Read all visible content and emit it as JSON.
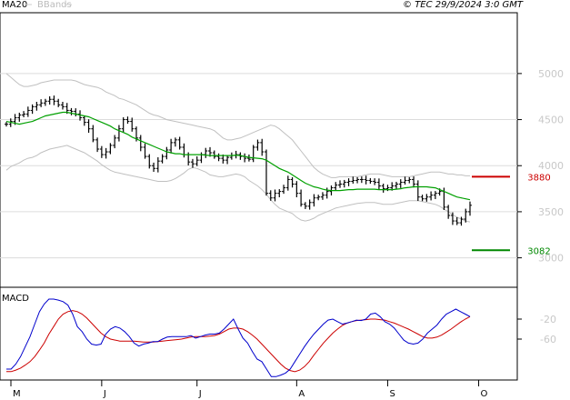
{
  "header": {
    "ma_label": "MA20",
    "bbands_label": "BBands",
    "copyright": "© TEC 29/9/2024 3:0 GMT"
  },
  "colors": {
    "ma": "#00a000",
    "bbands": "#c0c0c0",
    "price": "#000000",
    "resistance": "#cc0000",
    "support": "#008800",
    "macd": "#0000cc",
    "signal": "#cc0000",
    "grid": "#dcdcdc"
  },
  "chart_data": [
    {
      "type": "line",
      "title": "",
      "ylim": [
        2700,
        5650
      ],
      "yticks": [
        "5000",
        "4500",
        "4000",
        "3500",
        "3000"
      ],
      "ytick_values": [
        5000,
        4500,
        4000,
        3500,
        3000
      ],
      "xtick_labels": [
        "M",
        "J",
        "J",
        "A",
        "S",
        "O"
      ],
      "xtick_index": [
        0,
        22,
        44,
        67,
        88,
        109
      ],
      "levels": [
        {
          "name": "resistance",
          "value": 3880,
          "label": "3880"
        },
        {
          "name": "support",
          "value": 3082,
          "label": "3082"
        }
      ],
      "series": [
        {
          "name": "Close",
          "values": [
            4450,
            4480,
            4520,
            4550,
            4560,
            4600,
            4640,
            4660,
            4680,
            4700,
            4720,
            4700,
            4660,
            4640,
            4600,
            4590,
            4560,
            4520,
            4470,
            4400,
            4280,
            4180,
            4120,
            4150,
            4220,
            4300,
            4400,
            4500,
            4480,
            4400,
            4300,
            4200,
            4100,
            4000,
            3970,
            4050,
            4100,
            4170,
            4250,
            4280,
            4200,
            4120,
            4040,
            4020,
            4060,
            4120,
            4160,
            4140,
            4100,
            4080,
            4060,
            4090,
            4110,
            4120,
            4100,
            4080,
            4070,
            4200,
            4250,
            4150,
            3700,
            3650,
            3700,
            3720,
            3760,
            3850,
            3800,
            3700,
            3580,
            3560,
            3600,
            3650,
            3660,
            3680,
            3720,
            3760,
            3790,
            3800,
            3820,
            3830,
            3840,
            3850,
            3850,
            3840,
            3830,
            3820,
            3780,
            3750,
            3760,
            3780,
            3800,
            3820,
            3840,
            3850,
            3800,
            3660,
            3640,
            3660,
            3680,
            3700,
            3720,
            3550,
            3460,
            3400,
            3380,
            3420,
            3500,
            3570
          ]
        },
        {
          "name": "MA20",
          "values": [
            4480,
            4470,
            4460,
            4450,
            4460,
            4470,
            4480,
            4500,
            4520,
            4540,
            4550,
            4560,
            4570,
            4580,
            4580,
            4570,
            4560,
            4550,
            4540,
            4530,
            4510,
            4490,
            4470,
            4450,
            4430,
            4400,
            4380,
            4360,
            4340,
            4310,
            4290,
            4270,
            4250,
            4230,
            4210,
            4190,
            4170,
            4150,
            4140,
            4130,
            4130,
            4120,
            4120,
            4120,
            4120,
            4120,
            4115,
            4110,
            4110,
            4110,
            4110,
            4110,
            4110,
            4115,
            4110,
            4100,
            4090,
            4085,
            4080,
            4075,
            4060,
            4030,
            4000,
            3970,
            3950,
            3930,
            3900,
            3870,
            3840,
            3810,
            3790,
            3770,
            3760,
            3745,
            3735,
            3730,
            3730,
            3730,
            3735,
            3740,
            3740,
            3745,
            3745,
            3745,
            3745,
            3745,
            3740,
            3740,
            3740,
            3740,
            3745,
            3750,
            3760,
            3765,
            3770,
            3770,
            3770,
            3770,
            3765,
            3760,
            3740,
            3720,
            3700,
            3680,
            3660,
            3650,
            3640,
            3630
          ]
        },
        {
          "name": "BB Upper",
          "values": [
            5000,
            4960,
            4920,
            4880,
            4860,
            4860,
            4870,
            4880,
            4900,
            4910,
            4920,
            4930,
            4930,
            4930,
            4930,
            4930,
            4920,
            4900,
            4880,
            4870,
            4860,
            4850,
            4830,
            4800,
            4780,
            4760,
            4730,
            4720,
            4700,
            4680,
            4660,
            4630,
            4600,
            4570,
            4550,
            4540,
            4520,
            4500,
            4490,
            4480,
            4470,
            4460,
            4450,
            4440,
            4430,
            4420,
            4410,
            4400,
            4380,
            4340,
            4300,
            4280,
            4280,
            4290,
            4300,
            4320,
            4340,
            4360,
            4380,
            4400,
            4420,
            4440,
            4430,
            4400,
            4360,
            4320,
            4280,
            4220,
            4160,
            4100,
            4040,
            3980,
            3940,
            3910,
            3890,
            3870,
            3870,
            3880,
            3880,
            3880,
            3880,
            3880,
            3890,
            3900,
            3910,
            3910,
            3910,
            3900,
            3890,
            3880,
            3880,
            3880,
            3880,
            3880,
            3890,
            3900,
            3910,
            3920,
            3930,
            3930,
            3930,
            3920,
            3910,
            3910,
            3900,
            3900,
            3890,
            3890
          ]
        },
        {
          "name": "BB Lower",
          "values": [
            3950,
            3990,
            4010,
            4030,
            4060,
            4080,
            4090,
            4110,
            4140,
            4160,
            4180,
            4190,
            4200,
            4210,
            4220,
            4200,
            4180,
            4160,
            4140,
            4110,
            4080,
            4050,
            4010,
            3980,
            3950,
            3930,
            3920,
            3910,
            3900,
            3890,
            3880,
            3870,
            3860,
            3850,
            3840,
            3830,
            3830,
            3830,
            3840,
            3860,
            3890,
            3920,
            3960,
            3980,
            3970,
            3950,
            3930,
            3900,
            3890,
            3880,
            3880,
            3890,
            3900,
            3910,
            3900,
            3880,
            3840,
            3810,
            3780,
            3740,
            3690,
            3630,
            3580,
            3540,
            3520,
            3500,
            3480,
            3440,
            3410,
            3400,
            3410,
            3430,
            3460,
            3480,
            3500,
            3520,
            3540,
            3550,
            3560,
            3570,
            3580,
            3590,
            3595,
            3600,
            3600,
            3600,
            3590,
            3580,
            3580,
            3580,
            3590,
            3600,
            3610,
            3620,
            3620,
            3620,
            3610,
            3600,
            3590,
            3580,
            3560,
            3530,
            3500,
            3470,
            3440,
            3420,
            3400,
            3390
          ]
        }
      ]
    },
    {
      "type": "line",
      "title": "MACD",
      "ylim": [
        -140,
        40
      ],
      "yticks": [
        "-20",
        "-60"
      ],
      "ytick_values": [
        -20,
        -60
      ],
      "series": [
        {
          "name": "MACD",
          "values": [
            -120,
            -120,
            -110,
            -95,
            -75,
            -55,
            -30,
            -5,
            10,
            20,
            20,
            18,
            15,
            8,
            -10,
            -35,
            -45,
            -60,
            -70,
            -72,
            -70,
            -50,
            -40,
            -35,
            -38,
            -45,
            -55,
            -68,
            -74,
            -70,
            -68,
            -65,
            -65,
            -60,
            -56,
            -55,
            -55,
            -55,
            -55,
            -53,
            -58,
            -55,
            -52,
            -50,
            -50,
            -48,
            -40,
            -30,
            -20,
            -40,
            -58,
            -68,
            -85,
            -100,
            -105,
            -120,
            -135,
            -135,
            -132,
            -128,
            -120,
            -105,
            -90,
            -75,
            -62,
            -50,
            -40,
            -30,
            -22,
            -20,
            -25,
            -30,
            -28,
            -25,
            -22,
            -23,
            -20,
            -10,
            -8,
            -15,
            -25,
            -30,
            -38,
            -50,
            -62,
            -68,
            -70,
            -68,
            -60,
            -48,
            -40,
            -32,
            -20,
            -10,
            -5,
            0,
            -5,
            -10,
            -15
          ]
        },
        {
          "name": "Signal",
          "values": [
            -125,
            -125,
            -122,
            -118,
            -112,
            -105,
            -95,
            -82,
            -68,
            -50,
            -35,
            -20,
            -10,
            -5,
            -3,
            -5,
            -10,
            -18,
            -28,
            -38,
            -48,
            -55,
            -60,
            -62,
            -64,
            -64,
            -64,
            -64,
            -65,
            -66,
            -66,
            -66,
            -65,
            -64,
            -63,
            -62,
            -61,
            -60,
            -58,
            -56,
            -55,
            -55,
            -55,
            -54,
            -53,
            -50,
            -45,
            -40,
            -38,
            -38,
            -40,
            -45,
            -52,
            -60,
            -70,
            -80,
            -90,
            -100,
            -110,
            -118,
            -123,
            -125,
            -122,
            -115,
            -105,
            -92,
            -80,
            -68,
            -58,
            -48,
            -40,
            -33,
            -28,
            -25,
            -23,
            -22,
            -21,
            -20,
            -20,
            -21,
            -22,
            -25,
            -28,
            -32,
            -36,
            -40,
            -45,
            -50,
            -55,
            -58,
            -58,
            -56,
            -52,
            -46,
            -40,
            -33,
            -26,
            -20,
            -15
          ]
        }
      ]
    }
  ]
}
